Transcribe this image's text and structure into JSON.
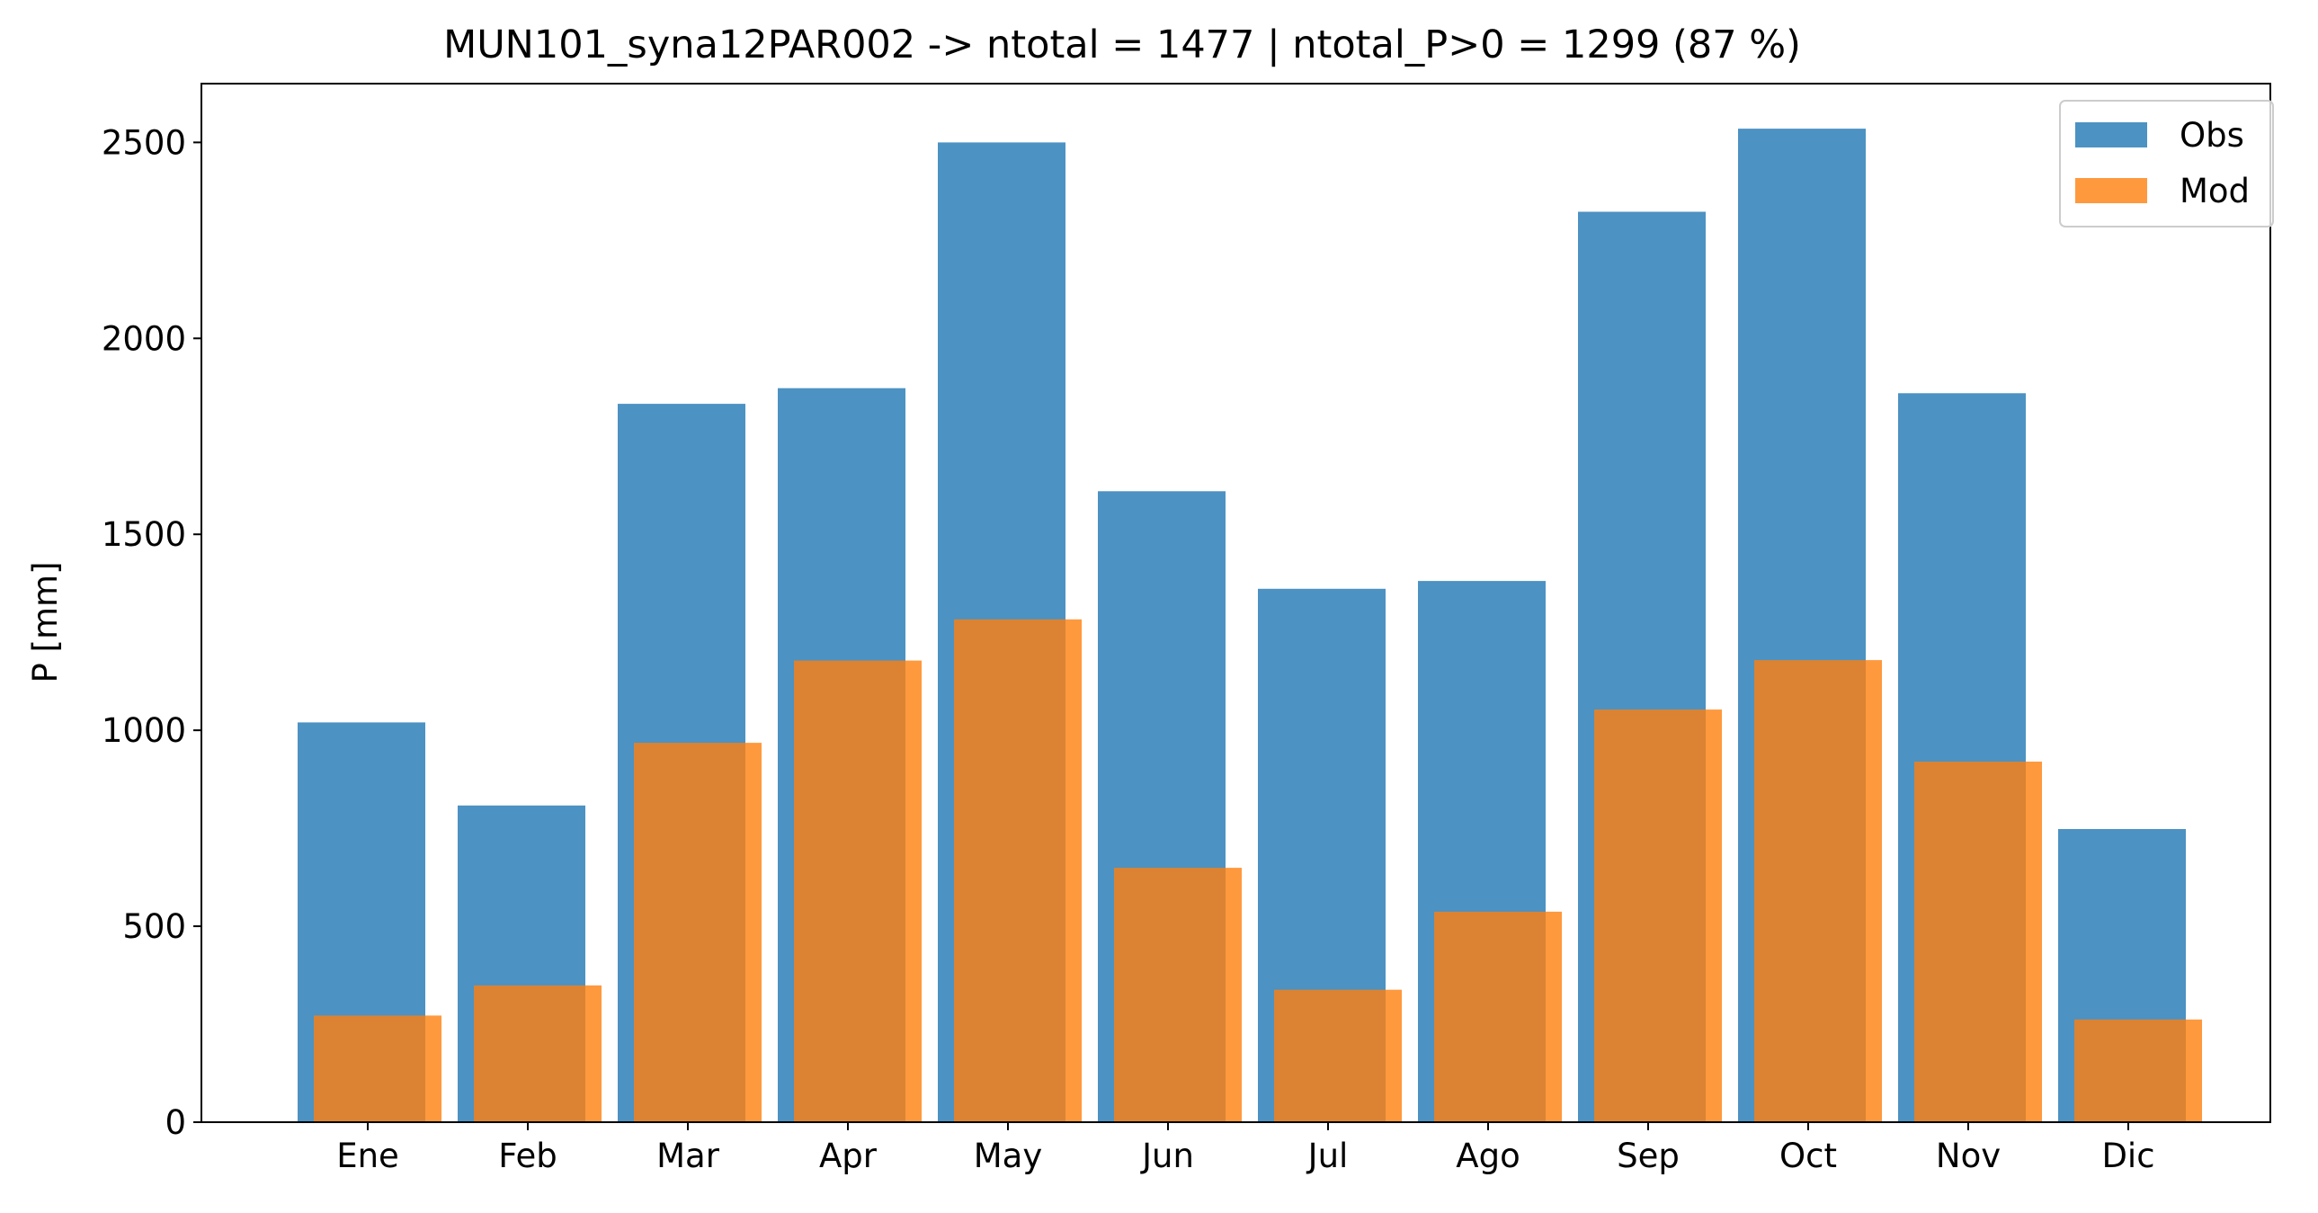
{
  "chart_data": {
    "type": "bar",
    "title": "MUN101_syna12PAR002 -> ntotal = 1477 | ntotal_P>0 = 1299 (87 %)",
    "xlabel": "",
    "ylabel": "P [mm]",
    "categories": [
      "Ene",
      "Feb",
      "Mar",
      "Apr",
      "May",
      "Jun",
      "Jul",
      "Ago",
      "Sep",
      "Oct",
      "Nov",
      "Dic"
    ],
    "series": [
      {
        "name": "Obs",
        "color": "#1f77b4",
        "values": [
          1020,
          808,
          1833,
          1873,
          2500,
          1610,
          1361,
          1381,
          2323,
          2535,
          1860,
          748
        ]
      },
      {
        "name": "Mod",
        "color": "#ff7f0e",
        "values": [
          272,
          349,
          968,
          1178,
          1283,
          649,
          338,
          537,
          1053,
          1179,
          920,
          262
        ]
      }
    ],
    "ylim": [
      0,
      2650
    ],
    "yticks": [
      0,
      500,
      1000,
      1500,
      2000,
      2500
    ],
    "grid": false,
    "legend_position": "top-right"
  }
}
